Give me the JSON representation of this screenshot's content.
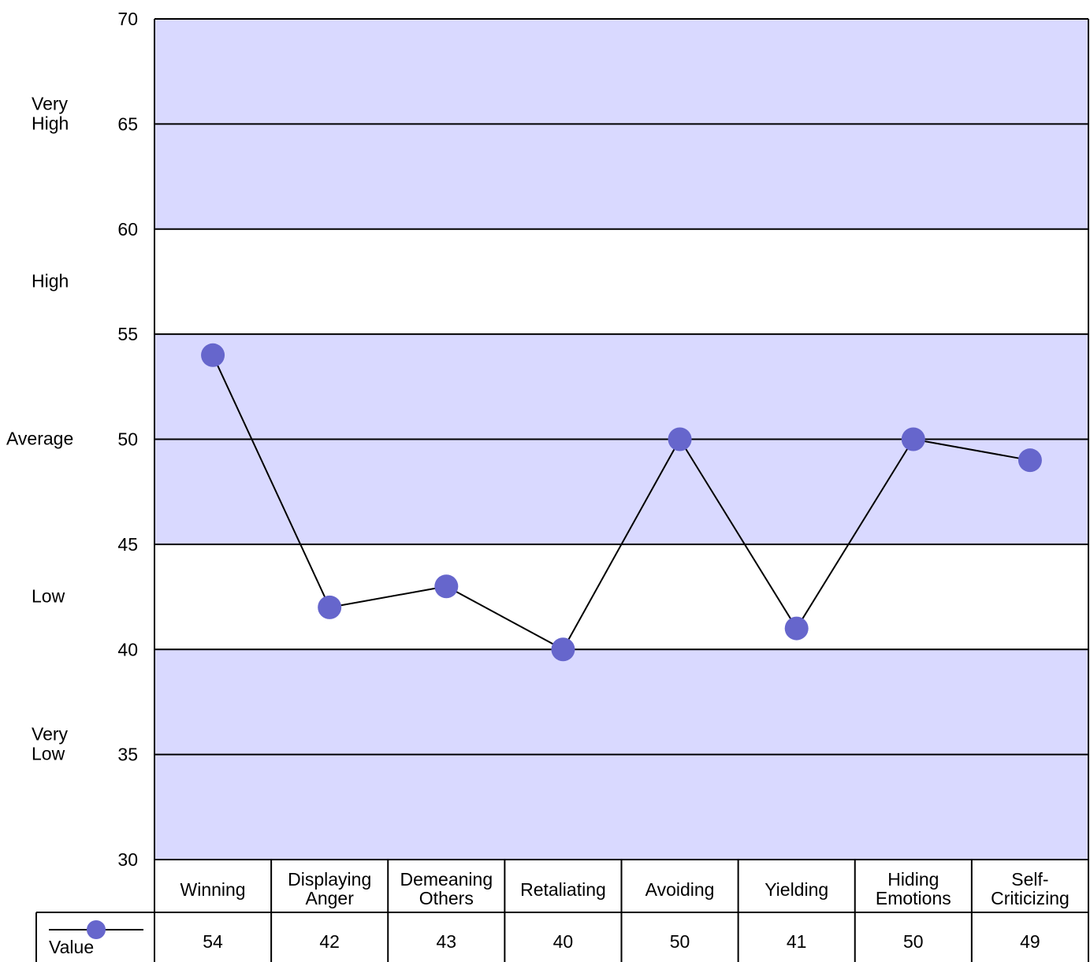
{
  "chart_data": {
    "type": "line",
    "title": "",
    "xlabel": "",
    "ylabel": "",
    "ylim": [
      30,
      70
    ],
    "yticks": [
      30,
      35,
      40,
      45,
      50,
      55,
      60,
      65,
      70
    ],
    "grid": true,
    "categories": [
      "Winning",
      "Displaying Anger",
      "Demeaning Others",
      "Retaliating",
      "Avoiding",
      "Yielding",
      "Hiding Emotions",
      "Self-Criticizing"
    ],
    "category_label_lines": [
      [
        "Winning"
      ],
      [
        "Displaying",
        "Anger"
      ],
      [
        "Demeaning",
        "Others"
      ],
      [
        "Retaliating"
      ],
      [
        "Avoiding"
      ],
      [
        "Yielding"
      ],
      [
        "Hiding",
        "Emotions"
      ],
      [
        "Self-",
        "Criticizing"
      ]
    ],
    "series": [
      {
        "name": "Value",
        "values": [
          54,
          42,
          43,
          40,
          50,
          41,
          50,
          49
        ],
        "color": "#6666cc"
      }
    ],
    "bands": [
      {
        "from": 60,
        "to": 70,
        "label_lines": [
          "Very",
          "High"
        ],
        "label_at": 65,
        "color": "#d9d9ff"
      },
      {
        "from": 55,
        "to": 60,
        "label_lines": [
          "High"
        ],
        "label_at": 57.5,
        "color": "#ffffff"
      },
      {
        "from": 45,
        "to": 55,
        "label_lines": [
          "Average"
        ],
        "label_at": 50,
        "color": "#d9d9ff"
      },
      {
        "from": 40,
        "to": 45,
        "label_lines": [
          "Low"
        ],
        "label_at": 42.5,
        "color": "#ffffff"
      },
      {
        "from": 30,
        "to": 40,
        "label_lines": [
          "Very",
          "Low"
        ],
        "label_at": 35,
        "color": "#d9d9ff"
      }
    ],
    "legend_position": "bottom-left table row"
  }
}
